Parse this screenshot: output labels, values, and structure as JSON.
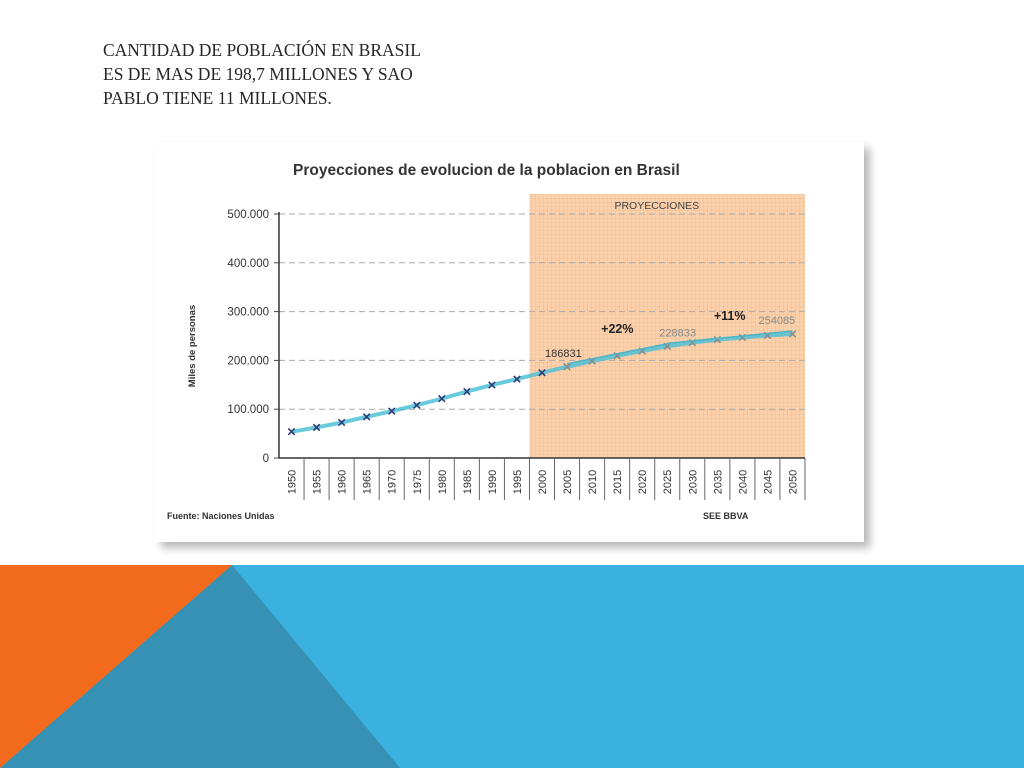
{
  "slide": {
    "title": "CANTIDAD DE POBLACIÓN EN BRASIL ES DE MAS DE 198,7 MILLONES Y SAO PABLO TIENE 11 MILLONES."
  },
  "colors": {
    "projection_bg": "#fbd2ad",
    "series_line": "#4fc1d6",
    "marker": "#2f3b7a",
    "projection_marker": "#8c8c8c",
    "trend_line": "#4cb3c7",
    "band_blue": "#3ab1de",
    "band_orange": "#f26b1d",
    "band_dark": "#3791b4"
  },
  "chart_data": {
    "type": "line",
    "title": "Proyecciones de evolucion de la  poblacion en Brasil",
    "ylabel": "Miles de personas",
    "xlabel": "",
    "source": "Fuente: Naciones Unidas",
    "credit": "SEE BBVA",
    "projection_label": "PROYECCIONES",
    "projection_start": 2000,
    "ylim": [
      0,
      500000
    ],
    "yticks": [
      0,
      100000,
      200000,
      300000,
      400000,
      500000
    ],
    "ytick_labels": [
      "0",
      "100.000",
      "200.000",
      "300.000",
      "400.000",
      "500.000"
    ],
    "categories": [
      "1950",
      "1955",
      "1960",
      "1965",
      "1970",
      "1975",
      "1980",
      "1985",
      "1990",
      "1995",
      "2000",
      "2005",
      "2010",
      "2015",
      "2020",
      "2025",
      "2030",
      "2035",
      "2040",
      "2045",
      "2050"
    ],
    "values": [
      53975,
      62656,
      72742,
      84362,
      95988,
      108113,
      121672,
      136124,
      149650,
      161692,
      174719,
      186831,
      198497,
      209401,
      219193,
      228833,
      236480,
      242634,
      247000,
      251000,
      254085
    ],
    "grid": "horizontal-dashed",
    "annotations": [
      {
        "text": "186831",
        "x": "2005",
        "value": 186831
      },
      {
        "text": "228833",
        "x": "2025",
        "value": 228833
      },
      {
        "text": "254085",
        "x": "2050",
        "value": 254085
      },
      {
        "text": "+22%",
        "from": "2005",
        "to": "2025"
      },
      {
        "text": "+11%",
        "from": "2025",
        "to": "2050"
      }
    ]
  }
}
